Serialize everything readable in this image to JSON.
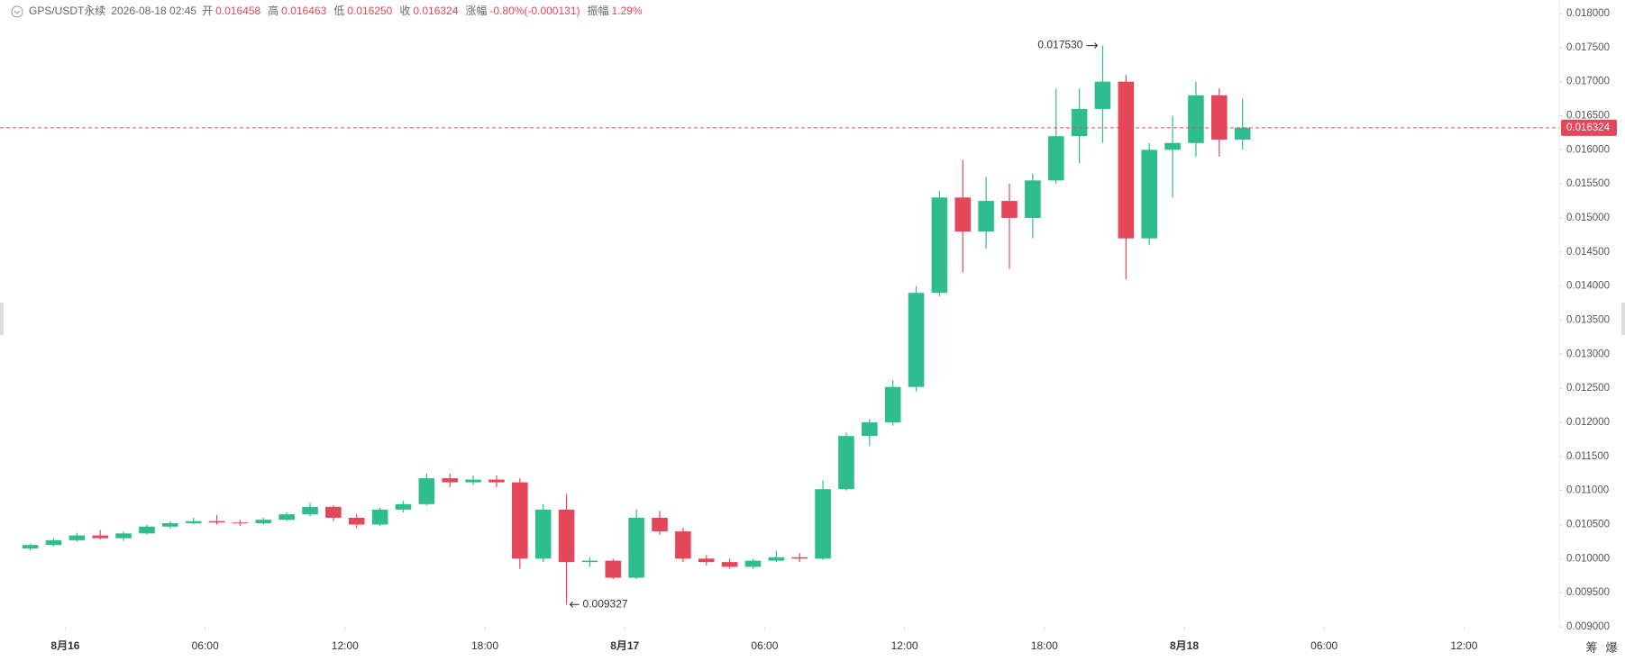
{
  "chart_data": {
    "type": "candlestick",
    "header": {
      "symbol": "GPS/USDT永续",
      "time": "2026-08-18 02:45",
      "items": [
        {
          "label": "开",
          "value": "0.016458"
        },
        {
          "label": "高",
          "value": "0.016463"
        },
        {
          "label": "低",
          "value": "0.016250"
        },
        {
          "label": "收",
          "value": "0.016324"
        },
        {
          "label": "涨幅",
          "value": "-0.80%(-0.000131)"
        },
        {
          "label": "振幅",
          "value": "1.29%"
        }
      ]
    },
    "up_color": "#2ebd8f",
    "down_color": "#e5475a",
    "x": [
      "2026-08-15 22:00",
      "2026-08-15 23:00",
      "2026-08-16 00:00",
      "2026-08-16 01:00",
      "2026-08-16 02:00",
      "2026-08-16 03:00",
      "2026-08-16 04:00",
      "2026-08-16 05:00",
      "2026-08-16 06:00",
      "2026-08-16 07:00",
      "2026-08-16 08:00",
      "2026-08-16 09:00",
      "2026-08-16 10:00",
      "2026-08-16 11:00",
      "2026-08-16 12:00",
      "2026-08-16 13:00",
      "2026-08-16 14:00",
      "2026-08-16 15:00",
      "2026-08-16 16:00",
      "2026-08-16 17:00",
      "2026-08-16 18:00",
      "2026-08-16 19:00",
      "2026-08-16 20:00",
      "2026-08-16 21:00",
      "2026-08-16 22:00",
      "2026-08-16 23:00",
      "2026-08-17 00:00",
      "2026-08-17 01:00",
      "2026-08-17 02:00",
      "2026-08-17 03:00",
      "2026-08-17 04:00",
      "2026-08-17 05:00",
      "2026-08-17 06:00",
      "2026-08-17 07:00",
      "2026-08-17 08:00",
      "2026-08-17 09:00",
      "2026-08-17 10:00",
      "2026-08-17 11:00",
      "2026-08-17 12:00",
      "2026-08-17 13:00",
      "2026-08-17 14:00",
      "2026-08-17 15:00",
      "2026-08-17 16:00",
      "2026-08-17 17:00",
      "2026-08-17 18:00",
      "2026-08-17 19:00",
      "2026-08-17 20:00",
      "2026-08-17 21:00",
      "2026-08-17 22:00",
      "2026-08-17 23:00",
      "2026-08-18 00:00",
      "2026-08-18 01:00",
      "2026-08-18 02:00"
    ],
    "open": [
      0.01015,
      0.0102,
      0.01027,
      0.01034,
      0.0103,
      0.01037,
      0.01047,
      0.01052,
      0.01055,
      0.01053,
      0.01052,
      0.01057,
      0.01065,
      0.01076,
      0.0106,
      0.0105,
      0.01072,
      0.0108,
      0.01118,
      0.01112,
      0.01116,
      0.01112,
      0.01,
      0.01072,
      0.00995,
      0.00997,
      0.00972,
      0.0106,
      0.0104,
      0.01,
      0.00995,
      0.00988,
      0.00997,
      0.01002,
      0.01,
      0.01102,
      0.0118,
      0.012,
      0.01252,
      0.0139,
      0.0153,
      0.0148,
      0.01525,
      0.015,
      0.01555,
      0.0162,
      0.0166,
      0.017,
      0.0147,
      0.016,
      0.0161,
      0.0168,
      0.01615
    ],
    "high": [
      0.01022,
      0.0103,
      0.01038,
      0.01042,
      0.0104,
      0.0105,
      0.01055,
      0.0106,
      0.01064,
      0.01057,
      0.0106,
      0.01068,
      0.01082,
      0.01078,
      0.01065,
      0.01075,
      0.01085,
      0.01125,
      0.01125,
      0.01122,
      0.01122,
      0.01118,
      0.0108,
      0.01095,
      0.01002,
      0.01,
      0.01072,
      0.0107,
      0.01045,
      0.01005,
      0.01,
      0.01,
      0.01012,
      0.01008,
      0.01115,
      0.01185,
      0.01205,
      0.01262,
      0.014,
      0.0154,
      0.01585,
      0.0156,
      0.0155,
      0.01565,
      0.0169,
      0.0169,
      0.01753,
      0.0171,
      0.0161,
      0.0165,
      0.017,
      0.0169,
      0.01675
    ],
    "low": [
      0.01012,
      0.01018,
      0.01025,
      0.01028,
      0.01026,
      0.01035,
      0.01044,
      0.0105,
      0.0105,
      0.01048,
      0.0105,
      0.01055,
      0.01062,
      0.01055,
      0.01045,
      0.01048,
      0.01068,
      0.01078,
      0.01105,
      0.01108,
      0.01105,
      0.00985,
      0.00995,
      0.009327,
      0.00988,
      0.0097,
      0.0097,
      0.01035,
      0.00995,
      0.0099,
      0.00985,
      0.00985,
      0.00995,
      0.00995,
      0.00998,
      0.011,
      0.01165,
      0.01195,
      0.01245,
      0.01385,
      0.0142,
      0.01455,
      0.01425,
      0.0147,
      0.0155,
      0.0158,
      0.0161,
      0.0141,
      0.0146,
      0.0153,
      0.0159,
      0.0159,
      0.016
    ],
    "close": [
      0.0102,
      0.01027,
      0.01034,
      0.0103,
      0.01037,
      0.01047,
      0.01052,
      0.01055,
      0.01053,
      0.01052,
      0.01057,
      0.01065,
      0.01076,
      0.0106,
      0.0105,
      0.01072,
      0.0108,
      0.01118,
      0.01112,
      0.01116,
      0.01112,
      0.01,
      0.01072,
      0.00995,
      0.00997,
      0.00972,
      0.0106,
      0.0104,
      0.01,
      0.00995,
      0.00988,
      0.00997,
      0.01002,
      0.01,
      0.01102,
      0.0118,
      0.012,
      0.01252,
      0.0139,
      0.0153,
      0.0148,
      0.01525,
      0.015,
      0.01555,
      0.0162,
      0.0166,
      0.017,
      0.0147,
      0.016,
      0.0161,
      0.0168,
      0.01615,
      0.016324
    ],
    "xlim": [
      "2026-08-15 21:12",
      "2026-08-18 16:05"
    ],
    "xticks": [
      {
        "value": "2026-08-16 00:00",
        "label": "8月16"
      },
      {
        "value": "2026-08-16 06:00",
        "label": "06:00"
      },
      {
        "value": "2026-08-16 12:00",
        "label": "12:00"
      },
      {
        "value": "2026-08-16 18:00",
        "label": "18:00"
      },
      {
        "value": "2026-08-17 00:00",
        "label": "8月17"
      },
      {
        "value": "2026-08-17 06:00",
        "label": "06:00"
      },
      {
        "value": "2026-08-17 12:00",
        "label": "12:00"
      },
      {
        "value": "2026-08-17 18:00",
        "label": "18:00"
      },
      {
        "value": "2026-08-18 00:00",
        "label": "8月18"
      },
      {
        "value": "2026-08-18 06:00",
        "label": "06:00"
      },
      {
        "value": "2026-08-18 12:00",
        "label": "12:00"
      }
    ],
    "ylim": [
      0.009,
      0.018
    ],
    "yticks": [
      {
        "value": 0.018,
        "label": "0.018000"
      },
      {
        "value": 0.0175,
        "label": "0.017500"
      },
      {
        "value": 0.017,
        "label": "0.017000"
      },
      {
        "value": 0.0165,
        "label": "0.016500"
      },
      {
        "value": 0.016,
        "label": "0.016000"
      },
      {
        "value": 0.0155,
        "label": "0.015500"
      },
      {
        "value": 0.015,
        "label": "0.015000"
      },
      {
        "value": 0.0145,
        "label": "0.014500"
      },
      {
        "value": 0.014,
        "label": "0.014000"
      },
      {
        "value": 0.0135,
        "label": "0.013500"
      },
      {
        "value": 0.013,
        "label": "0.013000"
      },
      {
        "value": 0.0125,
        "label": "0.012500"
      },
      {
        "value": 0.012,
        "label": "0.012000"
      },
      {
        "value": 0.0115,
        "label": "0.011500"
      },
      {
        "value": 0.011,
        "label": "0.011000"
      },
      {
        "value": 0.0105,
        "label": "0.010500"
      },
      {
        "value": 0.01,
        "label": "0.010000"
      },
      {
        "value": 0.0095,
        "label": "0.009500"
      },
      {
        "value": 0.009,
        "label": "0.009000"
      }
    ],
    "last_price": {
      "value": 0.016324,
      "label": "0.016324"
    },
    "annotations": [
      {
        "x": "2026-08-17 20:00",
        "value": 0.01753,
        "label": "0.017530",
        "side": "left"
      },
      {
        "x": "2026-08-16 21:00",
        "value": 0.009327,
        "label": "0.009327",
        "side": "right"
      }
    ],
    "buttons": [
      "筹",
      "爆"
    ]
  }
}
